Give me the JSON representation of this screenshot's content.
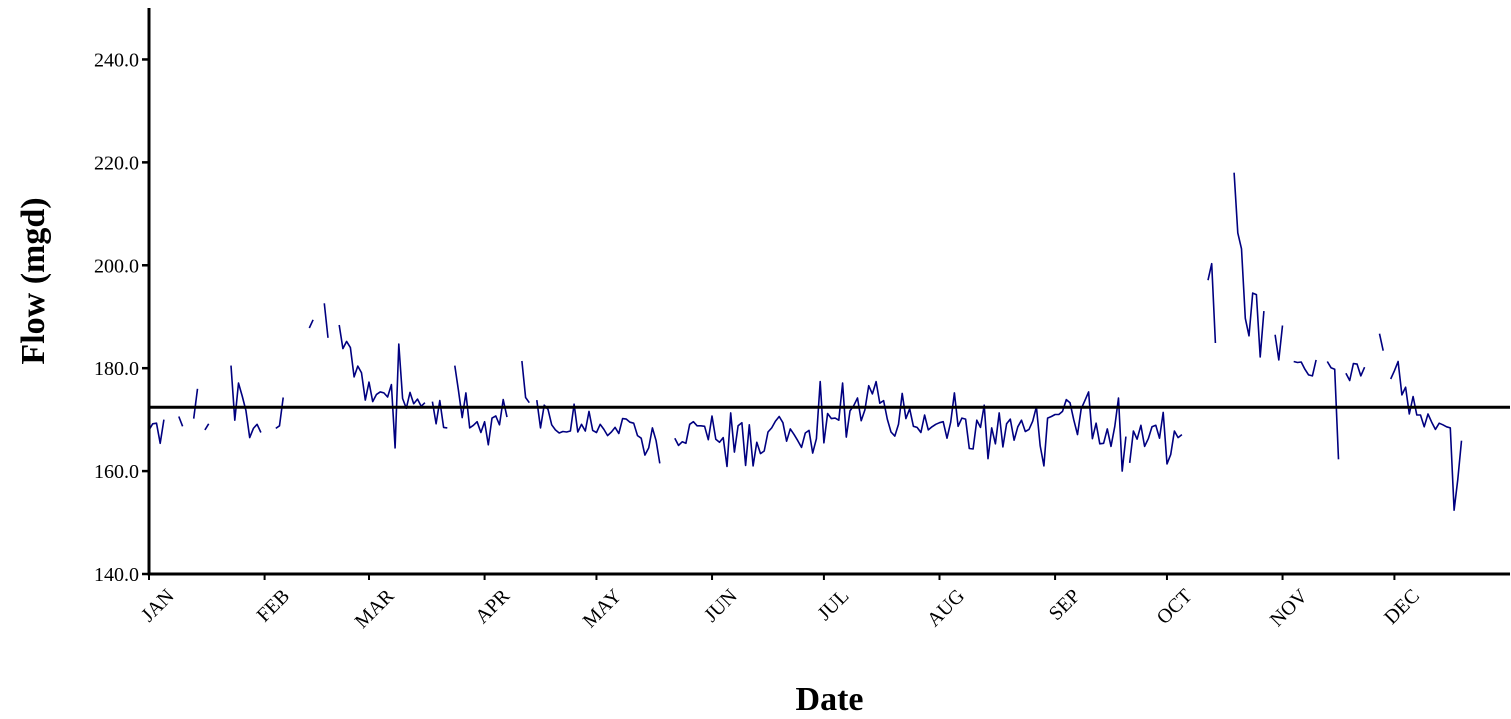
{
  "chart_data": {
    "type": "line",
    "title": "",
    "xlabel": "Date",
    "ylabel": "Flow (mgd)",
    "ylim": [
      140,
      250
    ],
    "yticks": [
      140,
      160,
      180,
      200,
      220,
      240
    ],
    "ytick_labels": [
      "140.0",
      "160.0",
      "180.0",
      "200.0",
      "220.0",
      "240.0"
    ],
    "x_unit": "day of year",
    "xlim": [
      1,
      366
    ],
    "month_labels": [
      "JAN",
      "FEB",
      "MAR",
      "APR",
      "MAY",
      "JUN",
      "JUL",
      "AUG",
      "SEP",
      "OCT",
      "NOV",
      "DEC"
    ],
    "month_starts": [
      1,
      32,
      60,
      91,
      121,
      152,
      182,
      213,
      244,
      274,
      305,
      335
    ],
    "grid": false,
    "reference_line": 172.4,
    "colors": {
      "series": "#000080",
      "reference": "#000000",
      "axis": "#000000"
    },
    "series": [
      {
        "segments": [
          {
            "x_start": 1,
            "values": [
              168,
              169.2,
              169.3,
              165.4,
              170
            ]
          },
          {
            "x_start": 9,
            "values": [
              170.6,
              168.7
            ]
          },
          {
            "x_start": 13,
            "values": [
              170.2,
              176
            ]
          },
          {
            "x_start": 16,
            "values": [
              168,
              169.2
            ]
          },
          {
            "x_start": 23,
            "values": [
              180.5,
              169.9,
              177.1,
              174.6,
              171.8,
              166.5,
              168.3,
              169.1,
              167.5
            ]
          },
          {
            "x_start": 35,
            "values": [
              168.3,
              168.8,
              174.3
            ]
          },
          {
            "x_start": 44,
            "values": [
              187.8,
              189.4
            ]
          },
          {
            "x_start": 48,
            "values": [
              192.6,
              185.9
            ]
          },
          {
            "x_start": 52,
            "values": [
              188.4,
              183.8,
              185.2,
              184,
              178.3,
              180.4,
              179.1,
              173.8,
              177.3,
              173.5,
              174.9,
              175.4,
              175.2,
              174.4,
              176.8,
              164.5,
              184.7,
              174.1,
              172.2,
              175.3,
              173.1,
              174,
              172.6,
              173.3
            ]
          },
          {
            "x_start": 77,
            "values": [
              173.5,
              169.2,
              173.7,
              168.5,
              168.4
            ]
          },
          {
            "x_start": 83,
            "values": [
              180.5,
              175.6,
              170.4,
              175.2,
              168.4,
              168.9,
              169.6,
              167.5,
              169.6,
              165.1,
              170.3,
              170.7,
              169,
              173.9,
              170.5
            ]
          },
          {
            "x_start": 101,
            "values": [
              181.4,
              174.3,
              173.3
            ]
          },
          {
            "x_start": 105,
            "values": [
              173.8,
              168.4,
              172.8,
              172,
              169,
              168,
              167.4,
              167.7,
              167.6,
              167.8,
              173,
              167.6,
              169.1,
              167.8,
              171.6,
              167.9,
              167.5,
              169.1,
              168.1,
              166.9,
              167.6,
              168.5,
              167.3,
              170.2,
              170.1,
              169.5,
              169.3,
              166.9,
              166.4,
              163.1,
              164.5,
              168.4,
              165.9,
              161.5
            ]
          },
          {
            "x_start": 142,
            "values": [
              166.4,
              165,
              165.7,
              165.4,
              169.1,
              169.6,
              168.8,
              168.8,
              168.7,
              166.1,
              170.7,
              166.2,
              165.6,
              166.5,
              160.9,
              171.3,
              163.7,
              168.8,
              169.4,
              161.1,
              169,
              161,
              165.6,
              163.4,
              163.9,
              167.6,
              168.4,
              169.7,
              170.6,
              169.4,
              165.8,
              168.2,
              167.1,
              165.9,
              164.6,
              167.4,
              167.9,
              163.5,
              166.3,
              177.4,
              165.5,
              171.2,
              170.2,
              170.3,
              169.9,
              177.1,
              166.6,
              171.7,
              172.7,
              174.2,
              169.8,
              171.9,
              176.6,
              175,
              177.4,
              173.2,
              173.7,
              170.1,
              167.6,
              166.8,
              169.1,
              175.1,
              170.2,
              172.1,
              168.7,
              168.5,
              167.5,
              170.9,
              168,
              168.6,
              169.1,
              169.4,
              169.6,
              166.4,
              169.5,
              175.2,
              168.7,
              170.3,
              170.1,
              164.4,
              164.3,
              169.9,
              168.5,
              172.8,
              162.4,
              168.4,
              165.3,
              171.3,
              164.7,
              169.2,
              170.1,
              166,
              168.6,
              169.9,
              167.7,
              168.1,
              169.7,
              172.5,
              164.9,
              161,
              170.3,
              170.6,
              171,
              171,
              171.6,
              173.9,
              173.3,
              170,
              167.1,
              172.1,
              173.7,
              175.4,
              166.3,
              169.3,
              165.3,
              165.4,
              168.2,
              164.8,
              168.7,
              174.2,
              160,
              166.7
            ]
          },
          {
            "x_start": 264,
            "values": [
              161.6,
              167.8,
              166.2,
              168.9,
              164.8,
              166.3,
              168.6,
              168.9,
              166.4,
              171.4,
              161.4,
              163.2,
              167.8,
              166.5,
              167.1
            ]
          },
          {
            "x_start": 285,
            "values": [
              197.1,
              200.3,
              184.9
            ]
          },
          {
            "x_start": 292,
            "values": [
              218,
              206.3,
              203.2,
              189.7,
              186.3,
              194.6,
              194.3,
              182.2,
              191.1
            ]
          },
          {
            "x_start": 303,
            "values": [
              186.5,
              181.6,
              188.3
            ]
          },
          {
            "x_start": 308,
            "values": [
              181.3,
              181.1,
              181.2,
              179.8,
              178.7,
              178.5,
              181.6
            ]
          },
          {
            "x_start": 317,
            "values": [
              181.3,
              180.1,
              179.8,
              162.3
            ]
          },
          {
            "x_start": 322,
            "values": [
              179,
              177.6,
              180.9,
              180.8,
              178.5,
              180.2
            ]
          },
          {
            "x_start": 331,
            "values": [
              186.7,
              183.4
            ]
          },
          {
            "x_start": 334,
            "values": [
              177.9,
              179.5,
              181.3,
              174.8,
              176.3,
              171.1,
              174.5,
              170.9,
              170.9,
              168.6,
              171.1,
              169.5,
              168.1,
              169.3,
              169,
              168.6,
              168.4,
              152.4,
              158.4,
              165.9
            ]
          }
        ]
      }
    ]
  }
}
